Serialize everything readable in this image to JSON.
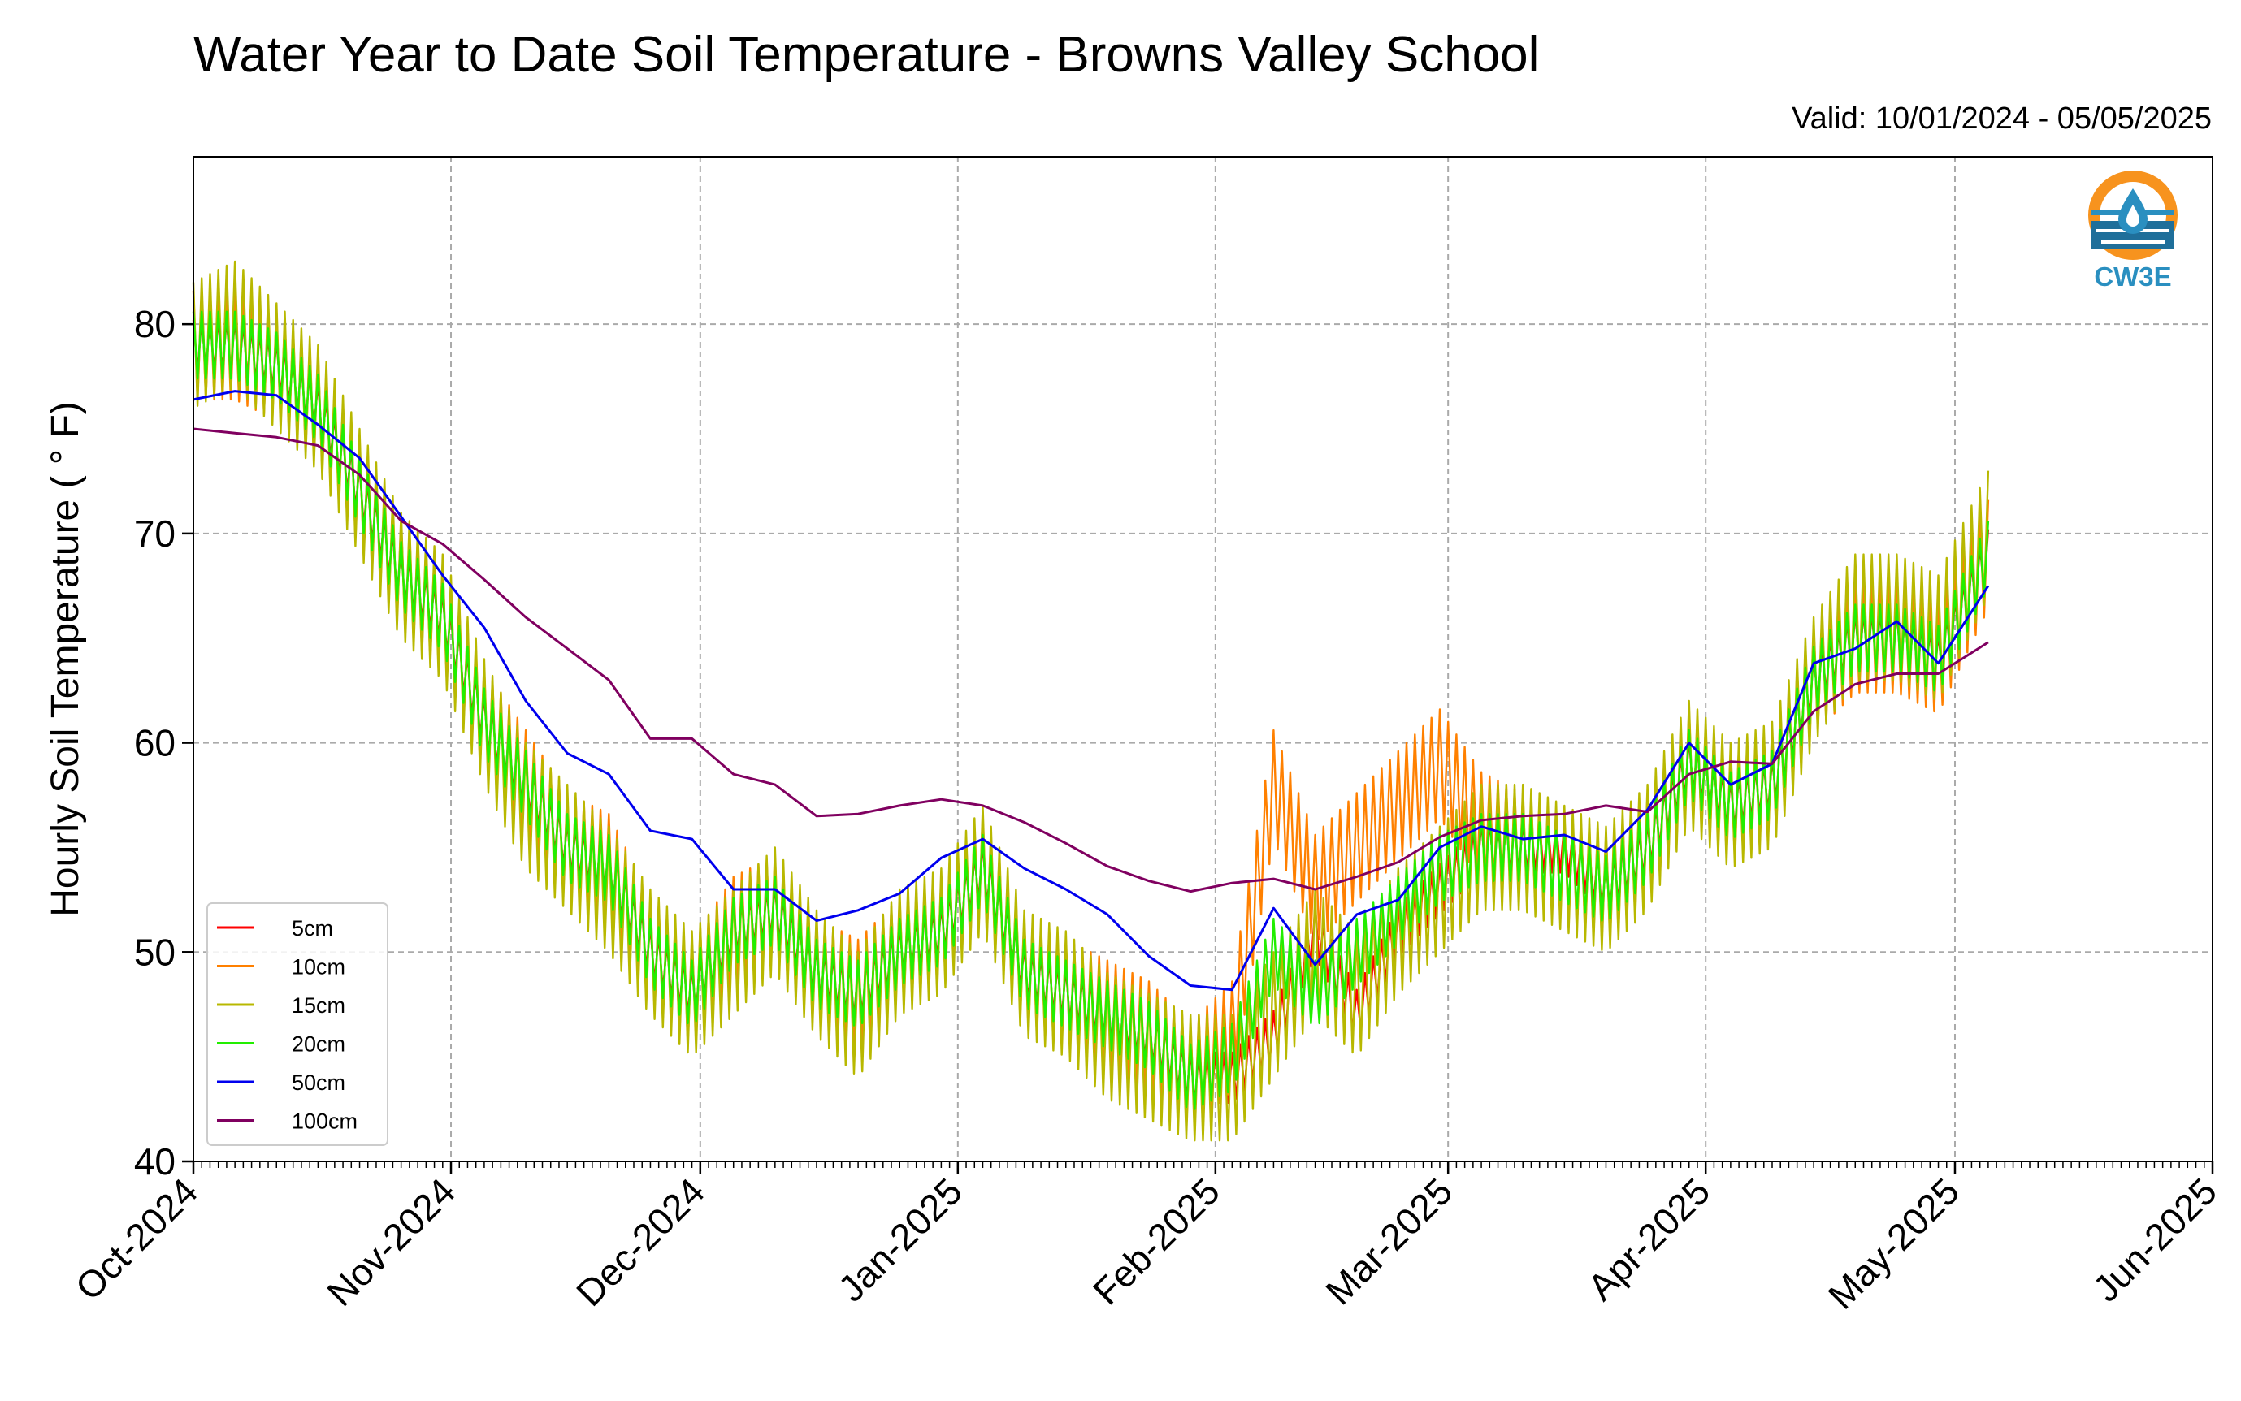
{
  "title": "Water Year to Date Soil Temperature - Browns Valley School",
  "subtitle": "Valid: 10/01/2024 - 05/05/2025",
  "logo": {
    "text": "CW3E",
    "icon": "water-drop-logo-icon"
  },
  "chart_data": {
    "type": "line",
    "title": "Water Year to Date Soil Temperature - Browns Valley School",
    "ylabel": "Hourly Soil Temperature ($^\\circ$F)",
    "ylabel_display": "Hourly Soil Temperature ( ° F)",
    "xlabel": "",
    "ylim": [
      40,
      88
    ],
    "xlim": [
      "2024-10-01",
      "2025-06-01"
    ],
    "x_tick_labels": [
      "Oct-2024",
      "Nov-2024",
      "Dec-2024",
      "Jan-2025",
      "Feb-2025",
      "Mar-2025",
      "Apr-2025",
      "May-2025",
      "Jun-2025"
    ],
    "y_ticks": [
      40,
      50,
      60,
      70,
      80
    ],
    "grid": true,
    "legend_position": "lower-left",
    "x": [
      "2024-10-01",
      "2024-10-06",
      "2024-10-11",
      "2024-10-16",
      "2024-10-21",
      "2024-10-26",
      "2024-10-31",
      "2024-11-05",
      "2024-11-10",
      "2024-11-15",
      "2024-11-20",
      "2024-11-25",
      "2024-11-30",
      "2024-12-05",
      "2024-12-10",
      "2024-12-15",
      "2024-12-20",
      "2024-12-25",
      "2024-12-30",
      "2025-01-04",
      "2025-01-09",
      "2025-01-14",
      "2025-01-19",
      "2025-01-24",
      "2025-01-29",
      "2025-02-03",
      "2025-02-08",
      "2025-02-13",
      "2025-02-18",
      "2025-02-23",
      "2025-02-28",
      "2025-03-05",
      "2025-03-10",
      "2025-03-15",
      "2025-03-20",
      "2025-03-25",
      "2025-03-30",
      "2025-04-04",
      "2025-04-09",
      "2025-04-14",
      "2025-04-19",
      "2025-04-24",
      "2025-04-29",
      "2025-05-05"
    ],
    "series": [
      {
        "name": "5cm",
        "color": "#ff0000",
        "values": [
          79,
          79,
          78,
          76,
          72,
          68,
          66,
          61,
          58,
          55,
          54,
          50,
          48,
          51,
          52,
          49,
          48,
          50,
          51,
          54,
          49,
          48,
          47,
          46,
          44,
          44,
          46,
          51,
          47,
          51,
          53,
          55,
          55,
          55,
          53,
          55,
          59,
          57,
          58,
          63,
          65,
          65,
          64,
          69
        ]
      },
      {
        "name": "10cm",
        "color": "#ff8000",
        "values": [
          79,
          79,
          78,
          76,
          72,
          68,
          66,
          61,
          58,
          55,
          54,
          50,
          48,
          51,
          52,
          49,
          48,
          50,
          51,
          54,
          49,
          48,
          47,
          46,
          44,
          46,
          58,
          53,
          55,
          57,
          59,
          56,
          55,
          54,
          53,
          55,
          59,
          57,
          58,
          63,
          65,
          65,
          64,
          69
        ]
      },
      {
        "name": "15cm",
        "color": "#b8b800",
        "values": [
          79,
          80,
          78,
          76,
          72,
          68,
          66,
          61,
          57,
          55,
          53,
          50,
          48,
          50,
          52,
          49,
          47,
          50,
          51,
          54,
          49,
          48,
          46,
          45,
          44,
          44,
          47,
          50,
          48,
          51,
          53,
          55,
          55,
          54,
          53,
          55,
          59,
          57,
          58,
          63,
          66,
          66,
          65,
          70
        ]
      },
      {
        "name": "20cm",
        "color": "#22ee00",
        "values": [
          79,
          79,
          78,
          76,
          72,
          68,
          66,
          61,
          58,
          55,
          54,
          50,
          48,
          51,
          52,
          49,
          48,
          50,
          51,
          54,
          49,
          48,
          47,
          46,
          44,
          45,
          50,
          48,
          50,
          52,
          54,
          55,
          55,
          54,
          53,
          55,
          59,
          57,
          58,
          63,
          65,
          65,
          64,
          69
        ]
      },
      {
        "name": "50cm",
        "color": "#0000ee",
        "values": [
          76.4,
          76.8,
          76.6,
          75.2,
          73.6,
          70.8,
          68,
          65.5,
          62,
          59.5,
          58.5,
          55.8,
          55.4,
          53,
          53,
          51.5,
          52,
          52.8,
          54.5,
          55.4,
          54,
          53,
          51.8,
          49.8,
          48.4,
          48.2,
          52.1,
          49.4,
          51.8,
          52.5,
          55,
          56,
          55.4,
          55.6,
          54.8,
          56.8,
          60,
          58,
          59,
          63.8,
          64.5,
          65.8,
          63.8,
          67.5
        ]
      },
      {
        "name": "100cm",
        "color": "#800060",
        "values": [
          75,
          74.8,
          74.6,
          74.2,
          72.8,
          70.6,
          69.5,
          67.8,
          66,
          64.5,
          63,
          60.2,
          60.2,
          58.5,
          58,
          56.5,
          56.6,
          57,
          57.3,
          57,
          56.2,
          55.2,
          54.1,
          53.4,
          52.9,
          53.3,
          53.5,
          53,
          53.6,
          54.3,
          55.5,
          56.3,
          56.5,
          56.6,
          57,
          56.7,
          58.5,
          59.1,
          59,
          61.5,
          62.8,
          63.3,
          63.3,
          64.8
        ]
      }
    ]
  }
}
